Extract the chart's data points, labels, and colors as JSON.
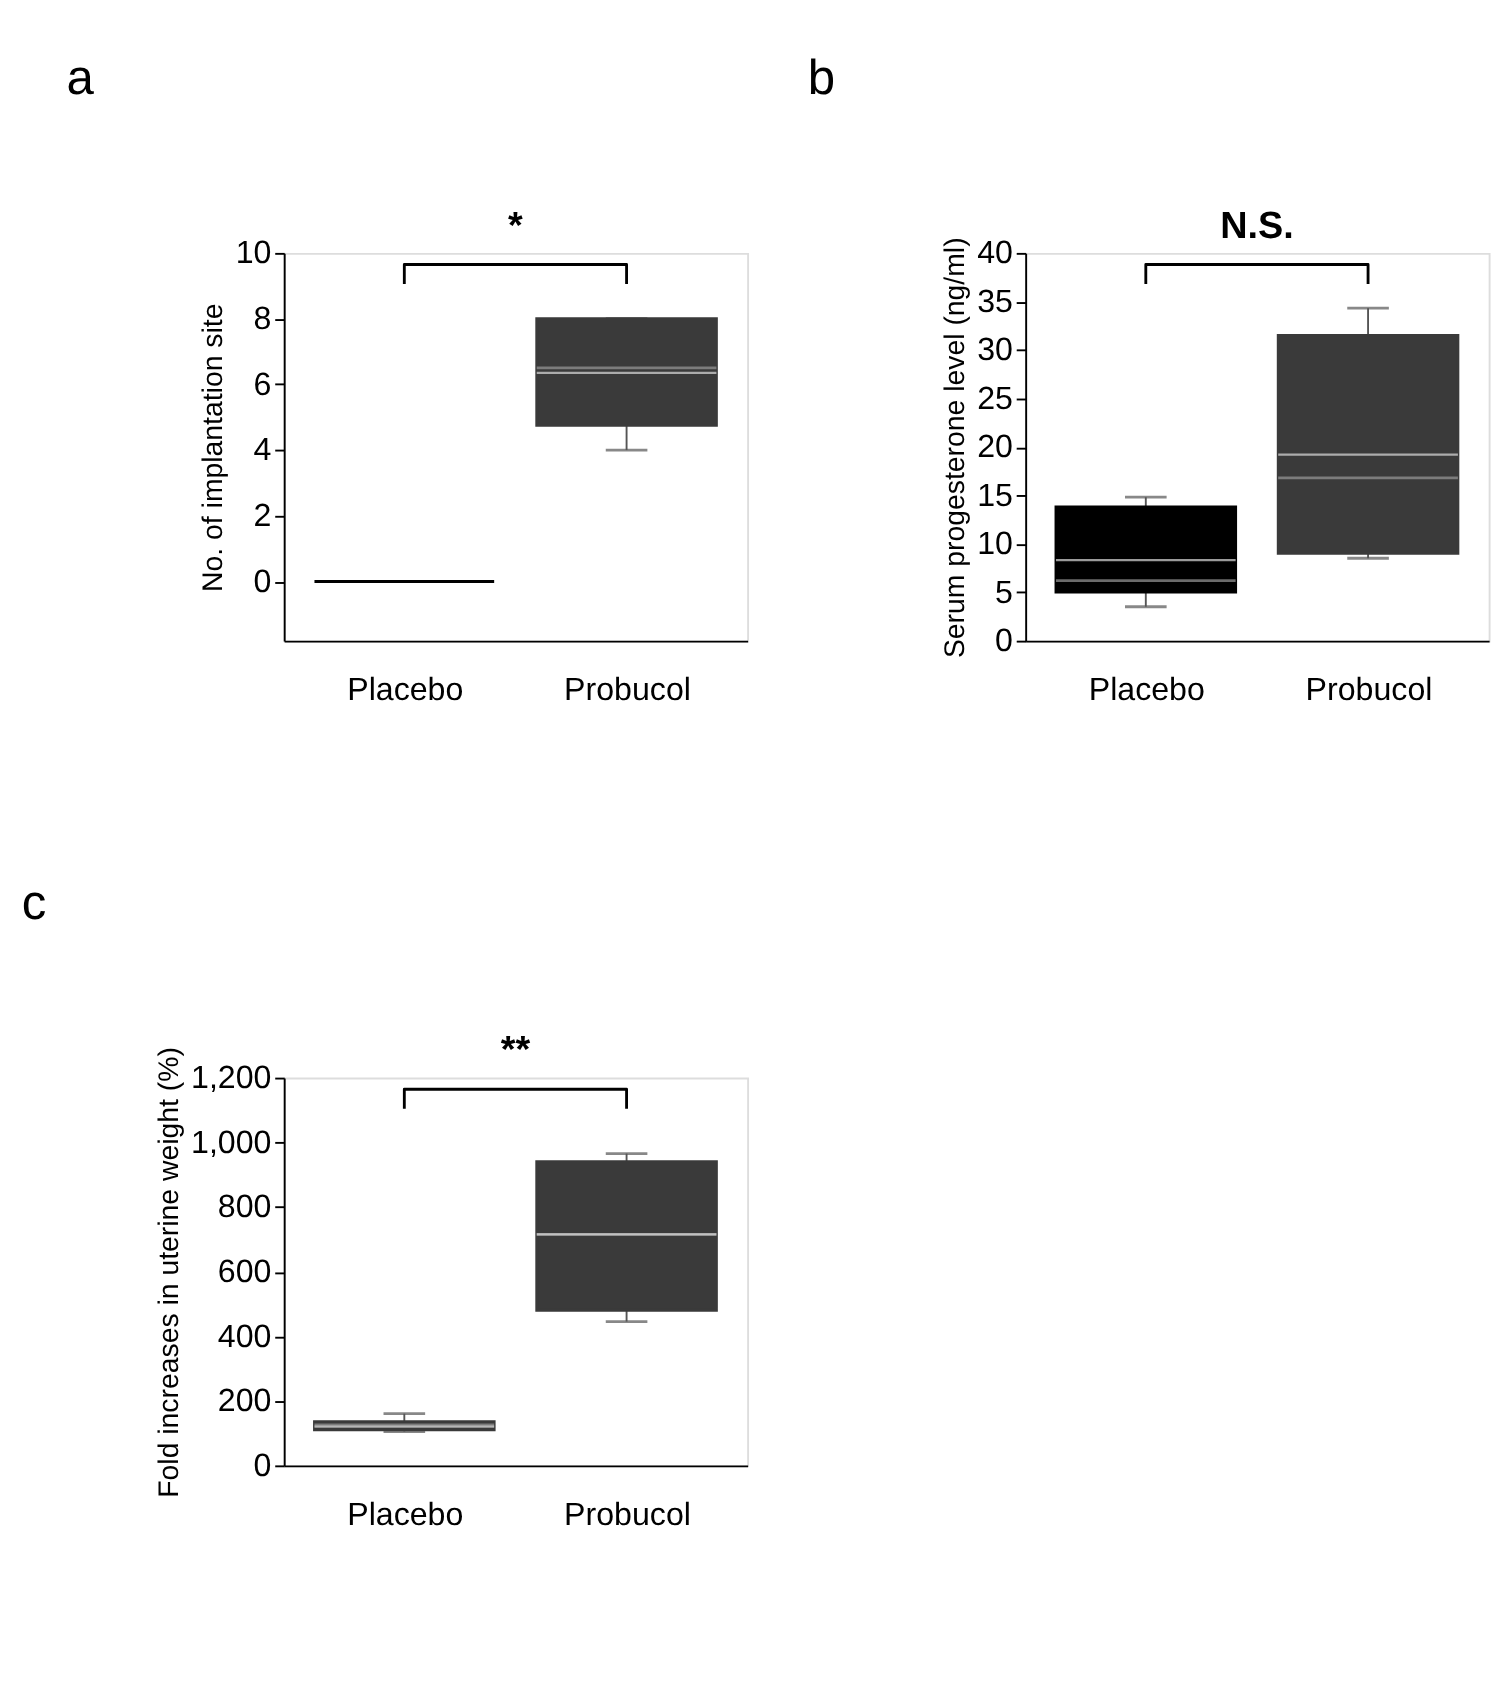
{
  "chart_data": [
    {
      "type": "box",
      "title": "a",
      "ylabel": "No. of implantation site",
      "categories": [
        "Placebo",
        "Probucol"
      ],
      "colors": [
        "#000000",
        "#3a3a3a"
      ],
      "boxes": [
        {
          "low": 0,
          "q1": 0,
          "median": 0,
          "q3": 0,
          "high": 0,
          "mean": 0
        },
        {
          "low": 4,
          "q1": 4.75,
          "median": 6.5,
          "q3": 8,
          "high": 8,
          "mean": 6.35
        }
      ],
      "ylim": [
        -1.8,
        10
      ],
      "yticks": [
        0,
        2,
        4,
        6,
        8,
        10
      ],
      "annotations": [
        "*"
      ]
    },
    {
      "type": "box",
      "title": "b",
      "ylabel": "Serum progesterone level (ng/ml)",
      "categories": [
        "Placebo",
        "Probucol"
      ],
      "colors": [
        "#000000",
        "#3a3a3a"
      ],
      "boxes": [
        {
          "low": 3.5,
          "q1": 5,
          "median": 6.2,
          "q3": 13.8,
          "high": 14.8,
          "mean": 8.3
        },
        {
          "low": 8.5,
          "q1": 9,
          "median": 16.8,
          "q3": 31.5,
          "high": 34.3,
          "mean": 19.2
        }
      ],
      "ylim": [
        0,
        40
      ],
      "yticks": [
        0,
        5,
        10,
        15,
        20,
        25,
        30,
        35,
        40
      ],
      "annotations": [
        "N.S."
      ]
    },
    {
      "type": "box",
      "title": "c",
      "ylabel": "Fold increases in uterine weight (%)",
      "categories": [
        "Placebo",
        "Probucol"
      ],
      "colors": [
        "#3a3a3a",
        "#3a3a3a"
      ],
      "boxes": [
        {
          "low": 105,
          "q1": 110,
          "median": 125,
          "q3": 135,
          "high": 160,
          "mean": 120
        },
        {
          "low": 445,
          "q1": 480,
          "median": 715,
          "q3": 940,
          "high": 965,
          "mean": 715
        }
      ],
      "ylim": [
        0,
        1200
      ],
      "yticks": [
        0,
        200,
        400,
        600,
        800,
        {
          "value": 1000,
          "label": "1,000"
        },
        {
          "value": 1200,
          "label": "1,200"
        }
      ],
      "annotations": [
        "**"
      ]
    }
  ]
}
